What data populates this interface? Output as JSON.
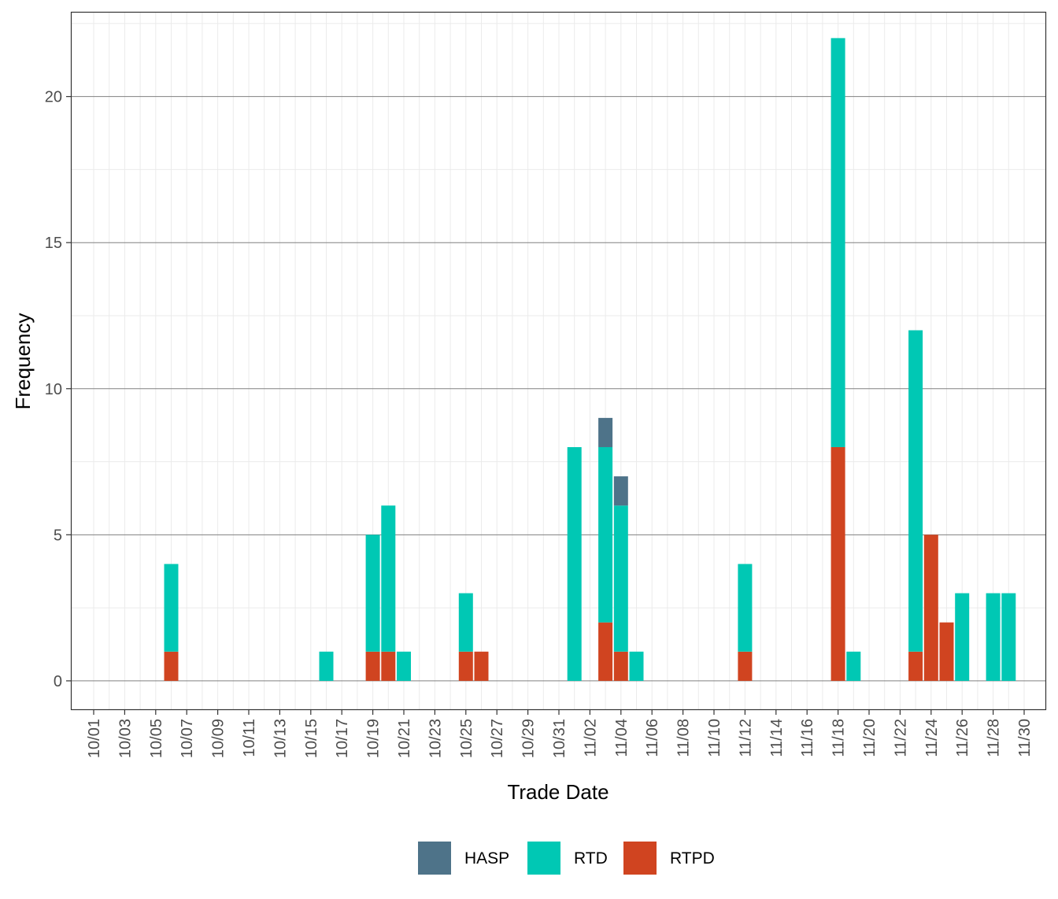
{
  "colors": {
    "HASP": "#4E7389",
    "RTD": "#00C8B4",
    "RTPD": "#D04420",
    "grid_major": "#808080",
    "grid_minor": "#ebebeb",
    "panel_border": "#333333",
    "tick_text": "#4d4d4d"
  },
  "chart_data": {
    "type": "bar",
    "stacked": true,
    "xlabel": "Trade Date",
    "ylabel": "Frequency",
    "ylim": [
      -1,
      22.9
    ],
    "yticks": [
      0,
      5,
      10,
      15,
      20
    ],
    "x_tick_labels": [
      "10/01",
      "10/03",
      "10/05",
      "10/07",
      "10/09",
      "10/11",
      "10/13",
      "10/15",
      "10/17",
      "10/19",
      "10/21",
      "10/23",
      "10/25",
      "10/27",
      "10/29",
      "10/31",
      "11/02",
      "11/04",
      "11/06",
      "11/08",
      "11/10",
      "11/12",
      "11/14",
      "11/16",
      "11/18",
      "11/20",
      "11/22",
      "11/24",
      "11/26",
      "11/28",
      "11/30"
    ],
    "categories": [
      "10/01",
      "10/02",
      "10/03",
      "10/04",
      "10/05",
      "10/06",
      "10/07",
      "10/08",
      "10/09",
      "10/10",
      "10/11",
      "10/12",
      "10/13",
      "10/14",
      "10/15",
      "10/16",
      "10/17",
      "10/18",
      "10/19",
      "10/20",
      "10/21",
      "10/22",
      "10/23",
      "10/24",
      "10/25",
      "10/26",
      "10/27",
      "10/28",
      "10/29",
      "10/30",
      "10/31",
      "11/01",
      "11/02",
      "11/03",
      "11/04",
      "11/05",
      "11/06",
      "11/07",
      "11/08",
      "11/09",
      "11/10",
      "11/11",
      "11/12",
      "11/13",
      "11/14",
      "11/15",
      "11/16",
      "11/17",
      "11/18",
      "11/19",
      "11/20",
      "11/21",
      "11/22",
      "11/23",
      "11/24",
      "11/25",
      "11/26",
      "11/27",
      "11/28",
      "11/29",
      "11/30"
    ],
    "series": [
      {
        "name": "RTPD",
        "values": [
          0,
          0,
          0,
          0,
          0,
          1,
          0,
          0,
          0,
          0,
          0,
          0,
          0,
          0,
          0,
          0,
          0,
          0,
          1,
          1,
          0,
          0,
          0,
          0,
          1,
          1,
          0,
          0,
          0,
          0,
          0,
          0,
          0,
          2,
          1,
          0,
          0,
          0,
          0,
          0,
          0,
          0,
          1,
          0,
          0,
          0,
          0,
          0,
          8,
          0,
          0,
          0,
          0,
          1,
          5,
          2,
          0,
          0,
          0,
          0,
          0
        ]
      },
      {
        "name": "RTD",
        "values": [
          0,
          0,
          0,
          0,
          0,
          3,
          0,
          0,
          0,
          0,
          0,
          0,
          0,
          0,
          0,
          1,
          0,
          0,
          4,
          5,
          1,
          0,
          0,
          0,
          2,
          0,
          0,
          0,
          0,
          0,
          0,
          8,
          0,
          6,
          5,
          1,
          0,
          0,
          0,
          0,
          0,
          0,
          3,
          0,
          0,
          0,
          0,
          0,
          14,
          1,
          0,
          0,
          0,
          11,
          0,
          0,
          3,
          0,
          3,
          3,
          0
        ]
      },
      {
        "name": "HASP",
        "values": [
          0,
          0,
          0,
          0,
          0,
          0,
          0,
          0,
          0,
          0,
          0,
          0,
          0,
          0,
          0,
          0,
          0,
          0,
          0,
          0,
          0,
          0,
          0,
          0,
          0,
          0,
          0,
          0,
          0,
          0,
          0,
          0,
          0,
          1,
          1,
          0,
          0,
          0,
          0,
          0,
          0,
          0,
          0,
          0,
          0,
          0,
          0,
          0,
          0,
          0,
          0,
          0,
          0,
          0,
          0,
          0,
          0,
          0,
          0,
          0,
          0
        ]
      }
    ],
    "legend": {
      "position": "bottom",
      "items": [
        "HASP",
        "RTD",
        "RTPD"
      ]
    }
  }
}
